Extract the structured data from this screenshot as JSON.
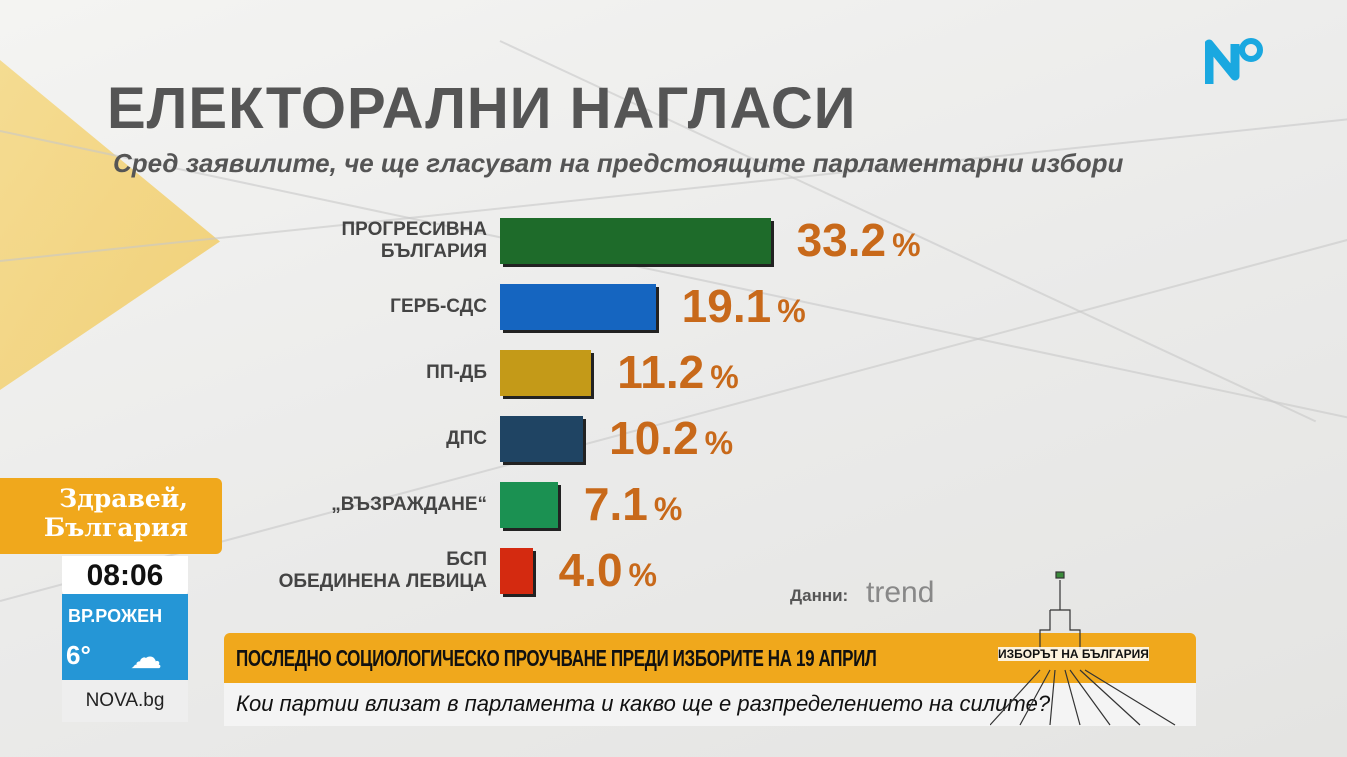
{
  "header": {
    "title": "ЕЛЕКТОРАЛНИ НАГЛАСИ",
    "subtitle": "Сред заявилите, че ще гласуват на предстоящите парламентарни избори"
  },
  "chart_data": {
    "type": "bar",
    "orientation": "horizontal",
    "title": "ЕЛЕКТОРАЛНИ НАГЛАСИ",
    "subtitle": "Сред заявилите, че ще гласуват на предстоящите парламентарни избори",
    "categories": [
      [
        "ПРОГРЕСИВНА",
        "БЪЛГАРИЯ"
      ],
      [
        "ГЕРБ-СДС"
      ],
      [
        "ПП-ДБ"
      ],
      [
        "ДПС"
      ],
      [
        "„ВЪЗРАЖДАНЕ“"
      ],
      [
        "БСП",
        "ОБЕДИНЕНА ЛЕВИЦА"
      ]
    ],
    "values": [
      33.2,
      19.1,
      11.2,
      10.2,
      7.1,
      4.0
    ],
    "value_labels": [
      "33.2",
      "19.1",
      "11.2",
      "10.2",
      "7.1",
      "4.0"
    ],
    "unit": "%",
    "colors": [
      "#1e6b2a",
      "#1565c0",
      "#c49a18",
      "#1f4463",
      "#1b9152",
      "#d42a10"
    ],
    "source_label": "Данни:",
    "source": "trend"
  },
  "branding": {
    "show_line1": "Здравей,",
    "show_line2": "България",
    "time": "08:06",
    "weather_location": "ВР.РОЖЕН",
    "temperature": "6°",
    "weather_icon": "cloud-icon",
    "site": "NOVA.bg"
  },
  "ticker": {
    "headline": "ПОСЛЕДНО СОЦИОЛОГИЧЕСКО ПРОУЧВАНЕ ПРЕДИ ИЗБОРИТЕ НА 19 АПРИЛ",
    "subline": "Кои партии влизат в парламента и какво ще е разпределението на силите?",
    "election_logo": "ИЗБОРЪТ НА БЪЛГАРИЯ"
  },
  "colors": {
    "accent": "#f0a81c",
    "value": "#c8691a",
    "logo": "#1aa8e0"
  }
}
